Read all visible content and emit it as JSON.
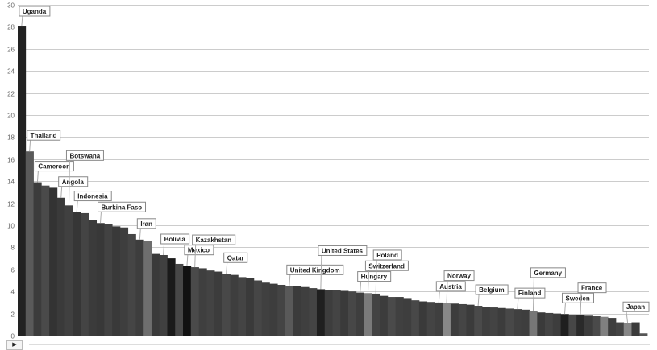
{
  "chart_data": {
    "type": "bar",
    "ylim": [
      0,
      30
    ],
    "yticks": [
      0,
      2,
      4,
      6,
      8,
      10,
      12,
      14,
      16,
      18,
      20,
      22,
      24,
      26,
      28,
      30
    ],
    "grid": true,
    "values": [
      28.1,
      16.7,
      13.9,
      13.6,
      13.4,
      12.5,
      11.8,
      11.2,
      11.1,
      10.5,
      10.2,
      10.1,
      9.9,
      9.8,
      9.2,
      8.7,
      8.6,
      7.4,
      7.3,
      7.0,
      6.5,
      6.3,
      6.2,
      6.1,
      5.9,
      5.8,
      5.6,
      5.5,
      5.3,
      5.2,
      5.0,
      4.8,
      4.7,
      4.6,
      4.5,
      4.5,
      4.4,
      4.3,
      4.2,
      4.15,
      4.1,
      4.05,
      4.0,
      3.9,
      3.85,
      3.8,
      3.6,
      3.5,
      3.5,
      3.4,
      3.2,
      3.1,
      3.05,
      3.0,
      2.95,
      2.9,
      2.85,
      2.8,
      2.7,
      2.6,
      2.55,
      2.5,
      2.45,
      2.4,
      2.35,
      2.2,
      2.1,
      2.05,
      2.0,
      1.95,
      1.9,
      1.85,
      1.8,
      1.75,
      1.7,
      1.6,
      1.2,
      1.15,
      1.2,
      0.2
    ],
    "colors": [
      "#222222",
      "#5a5a5a",
      "#3c3c3c",
      "#4a4a4a",
      "#333333",
      "#3a3a3a",
      "#404040",
      "#363636",
      "#444444",
      "#3b3b3b",
      "#383838",
      "#424242",
      "#393939",
      "#3e3e3e",
      "#454545",
      "#3d3d3d",
      "#6e6e6e",
      "#3a3a3a",
      "#404040",
      "#1a1a1a",
      "#474747",
      "#111111",
      "#4a4a4a",
      "#3f3f3f",
      "#434343",
      "#3c3c3c",
      "#484848",
      "#3e3e3e",
      "#444444",
      "#3a3a3a",
      "#464646",
      "#404040",
      "#3d3d3d",
      "#444444",
      "#595959",
      "#3b3b3b",
      "#3f3f3f",
      "#444444",
      "#1f1f1f",
      "#3d3d3d",
      "#444444",
      "#3a3a3a",
      "#474747",
      "#3e3e3e",
      "#7a7a7a",
      "#434343",
      "#3c3c3c",
      "#4a4a4a",
      "#404040",
      "#3e3e3e",
      "#484848",
      "#3a3a3a",
      "#444444",
      "#3f3f3f",
      "#888888",
      "#3d3d3d",
      "#454545",
      "#3b3b3b",
      "#4a4a4a",
      "#3f3f3f",
      "#434343",
      "#3c3c3c",
      "#484848",
      "#404040",
      "#3e3e3e",
      "#777777",
      "#3a3a3a",
      "#444444",
      "#3d3d3d",
      "#1f1f1f",
      "#474747",
      "#2a2a2a",
      "#3c3c3c",
      "#4a4a4a",
      "#808080",
      "#3e3e3e",
      "#444444",
      "#868686",
      "#3b3b3b",
      "#555555"
    ],
    "annotations": [
      {
        "text": "Uganda",
        "bar": 0
      },
      {
        "text": "Thailand",
        "bar": 1
      },
      {
        "text": "Cameroon",
        "bar": 2
      },
      {
        "text": "Angola",
        "bar": 5
      },
      {
        "text": "Botswana",
        "bar": 6
      },
      {
        "text": "Indonesia",
        "bar": 7
      },
      {
        "text": "Burkina Faso",
        "bar": 10
      },
      {
        "text": "Iran",
        "bar": 15
      },
      {
        "text": "Bolivia",
        "bar": 18
      },
      {
        "text": "Mexico",
        "bar": 21
      },
      {
        "text": "Kazakhstan",
        "bar": 22
      },
      {
        "text": "Qatar",
        "bar": 26
      },
      {
        "text": "United Kingdom",
        "bar": 34
      },
      {
        "text": "United States",
        "bar": 38
      },
      {
        "text": "Hungary",
        "bar": 43
      },
      {
        "text": "Switzerland",
        "bar": 44
      },
      {
        "text": "Poland",
        "bar": 45
      },
      {
        "text": "Austria",
        "bar": 53
      },
      {
        "text": "Norway",
        "bar": 54
      },
      {
        "text": "Belgium",
        "bar": 58
      },
      {
        "text": "Finland",
        "bar": 63
      },
      {
        "text": "Germany",
        "bar": 65
      },
      {
        "text": "Sweden",
        "bar": 69
      },
      {
        "text": "France",
        "bar": 71
      },
      {
        "text": "Japan",
        "bar": 77
      }
    ]
  },
  "controls": {
    "play_icon": "play-icon",
    "play_glyph": "▶"
  }
}
